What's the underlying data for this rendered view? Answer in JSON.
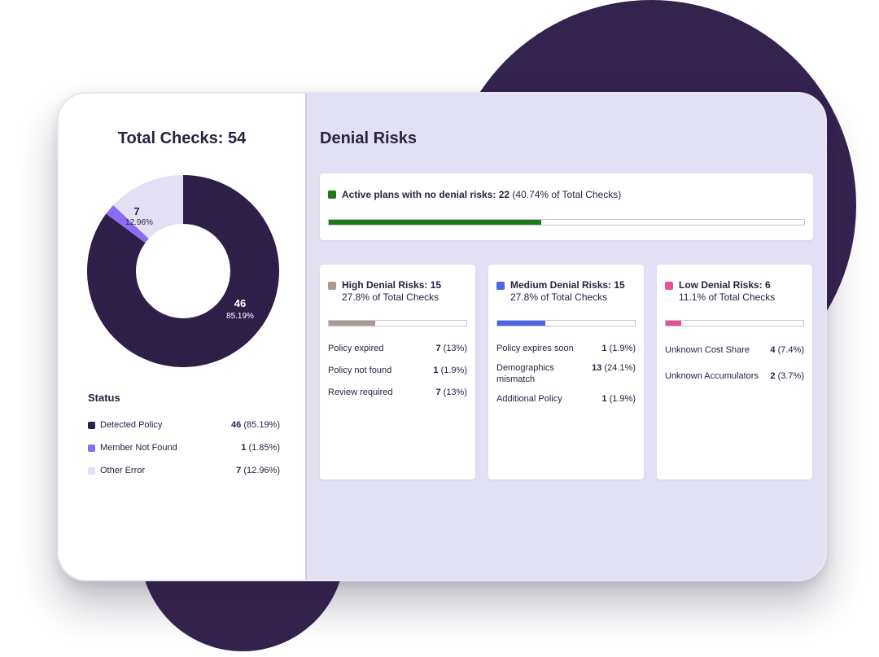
{
  "colors": {
    "detected": "#2d1f47",
    "member_not_found": "#8c6cf0",
    "other_error": "#e3e0f5",
    "green": "#1d7a18",
    "brown": "#a89991",
    "blue": "#4a66e8",
    "pink": "#ea4f95"
  },
  "total": {
    "title": "Total Checks: 54",
    "donut_labels": {
      "large": {
        "count": "46",
        "pct": "85.19%"
      },
      "small": {
        "count": "7",
        "pct": "12.96%"
      }
    },
    "status_heading": "Status",
    "legend": [
      {
        "label": "Detected Policy",
        "count": "46",
        "pct": "(85.19%)",
        "color": "#2d1f47",
        "value": 46
      },
      {
        "label": "Member Not Found",
        "count": "1",
        "pct": "(1.85%)",
        "color": "#8c6cf0",
        "value": 1
      },
      {
        "label": "Other Error",
        "count": "7",
        "pct": "(12.96%)",
        "color": "#e3e0f5",
        "value": 7
      }
    ]
  },
  "risks": {
    "title": "Denial Risks",
    "active": {
      "label": "Active plans with no denial risks: 22",
      "suffix": "(40.74% of Total Checks)",
      "fraction": 0.4474,
      "color": "#1d7a18"
    },
    "cards": [
      {
        "title": "High Denial Risks: 15",
        "sub": "27.8% of Total Checks",
        "color": "#a89991",
        "fraction": 0.34,
        "items": [
          {
            "label": "Policy expired",
            "count": "7",
            "pct": "(13%)"
          },
          {
            "label": "Policy not found",
            "count": "1",
            "pct": "(1.9%)"
          },
          {
            "label": "Review required",
            "count": "7",
            "pct": "(13%)"
          }
        ]
      },
      {
        "title": "Medium Denial Risks: 15",
        "sub": "27.8% of Total Checks",
        "color": "#4a66e8",
        "fraction": 0.35,
        "items": [
          {
            "label": "Policy expires soon",
            "count": "1",
            "pct": "(1.9%)"
          },
          {
            "label": "Demographics mismatch",
            "count": "13",
            "pct": "(24.1%)"
          },
          {
            "label": "Additional Policy",
            "count": "1",
            "pct": "(1.9%)"
          }
        ]
      },
      {
        "title": "Low Denial Risks: 6",
        "sub": "11.1% of Total Checks",
        "color": "#ea4f95",
        "fraction": 0.11,
        "items": [
          {
            "label": "Unknown Cost Share",
            "count": "4",
            "pct": "(7.4%)"
          },
          {
            "label": "Unknown Accumulators",
            "count": "2",
            "pct": "(3.7%)"
          }
        ]
      }
    ]
  }
}
